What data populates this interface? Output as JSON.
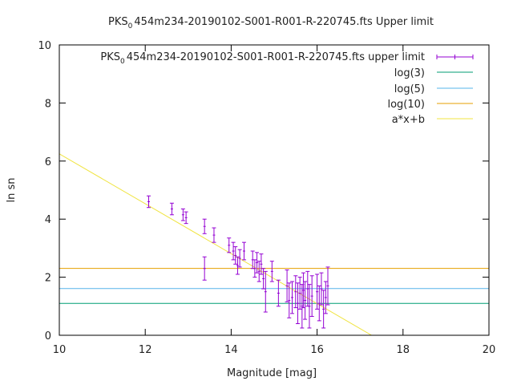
{
  "chart_data": {
    "type": "scatter",
    "title": {
      "prefix": "PKS",
      "subscript": "0",
      "suffix": "454m234-20190102-S001-R001-R-220745.fts Upper limit"
    },
    "xlabel": "Magnitude [mag]",
    "ylabel": "ln sn",
    "xlim": [
      10,
      20
    ],
    "ylim": [
      0,
      10
    ],
    "xticks": [
      10,
      12,
      14,
      16,
      18,
      20
    ],
    "yticks": [
      0,
      2,
      4,
      6,
      8,
      10
    ],
    "grid": false,
    "legend_position": "top-right",
    "legend": [
      {
        "prefix": "PKS",
        "subscript": "0",
        "suffix": "454m234-20190102-S001-R001-R-220745.fts upper limit",
        "kind": "errorbar",
        "color": "#9400d3"
      },
      {
        "label": "log(3)",
        "kind": "line",
        "color": "#009e73"
      },
      {
        "label": "log(5)",
        "kind": "line",
        "color": "#56b4e9"
      },
      {
        "label": "log(10)",
        "kind": "line",
        "color": "#e69f00"
      },
      {
        "label": "a*x+b",
        "kind": "line",
        "color": "#f0e442"
      }
    ],
    "hlines": [
      {
        "name": "log(3)",
        "y": 1.0986,
        "color": "#009e73"
      },
      {
        "name": "log(5)",
        "y": 1.6094,
        "color": "#56b4e9"
      },
      {
        "name": "log(10)",
        "y": 2.3026,
        "color": "#e69f00"
      }
    ],
    "fit_line": {
      "name": "a*x+b",
      "slope": -0.86,
      "intercept": 14.85,
      "color": "#f0e442"
    },
    "series": [
      {
        "name": "upper limit",
        "color": "#9400d3",
        "points": [
          {
            "x": 12.08,
            "y": 4.6,
            "err": 0.2
          },
          {
            "x": 12.62,
            "y": 4.35,
            "err": 0.2
          },
          {
            "x": 12.88,
            "y": 4.15,
            "err": 0.2
          },
          {
            "x": 12.95,
            "y": 4.05,
            "err": 0.2
          },
          {
            "x": 13.38,
            "y": 3.75,
            "err": 0.25
          },
          {
            "x": 13.38,
            "y": 2.3,
            "err": 0.4
          },
          {
            "x": 13.6,
            "y": 3.45,
            "err": 0.25
          },
          {
            "x": 13.95,
            "y": 3.1,
            "err": 0.25
          },
          {
            "x": 14.05,
            "y": 2.9,
            "err": 0.3
          },
          {
            "x": 14.1,
            "y": 2.75,
            "err": 0.3
          },
          {
            "x": 14.15,
            "y": 2.4,
            "err": 0.3
          },
          {
            "x": 14.2,
            "y": 2.65,
            "err": 0.3
          },
          {
            "x": 14.3,
            "y": 2.9,
            "err": 0.3
          },
          {
            "x": 14.5,
            "y": 2.6,
            "err": 0.3
          },
          {
            "x": 14.55,
            "y": 2.3,
            "err": 0.3
          },
          {
            "x": 14.6,
            "y": 2.5,
            "err": 0.35
          },
          {
            "x": 14.65,
            "y": 2.2,
            "err": 0.35
          },
          {
            "x": 14.7,
            "y": 2.45,
            "err": 0.35
          },
          {
            "x": 14.75,
            "y": 1.95,
            "err": 0.35
          },
          {
            "x": 14.8,
            "y": 1.5,
            "err": 0.7
          },
          {
            "x": 14.95,
            "y": 2.2,
            "err": 0.35
          },
          {
            "x": 15.1,
            "y": 1.45,
            "err": 0.45
          },
          {
            "x": 15.3,
            "y": 1.7,
            "err": 0.55
          },
          {
            "x": 15.35,
            "y": 1.2,
            "err": 0.6
          },
          {
            "x": 15.42,
            "y": 1.3,
            "err": 0.55
          },
          {
            "x": 15.5,
            "y": 1.5,
            "err": 0.55
          },
          {
            "x": 15.55,
            "y": 1.1,
            "err": 0.7
          },
          {
            "x": 15.6,
            "y": 1.45,
            "err": 0.55
          },
          {
            "x": 15.65,
            "y": 1.0,
            "err": 0.75
          },
          {
            "x": 15.68,
            "y": 1.55,
            "err": 0.6
          },
          {
            "x": 15.72,
            "y": 1.2,
            "err": 0.65
          },
          {
            "x": 15.78,
            "y": 1.6,
            "err": 0.6
          },
          {
            "x": 15.82,
            "y": 1.0,
            "err": 0.75
          },
          {
            "x": 15.88,
            "y": 1.35,
            "err": 0.7
          },
          {
            "x": 16.0,
            "y": 1.5,
            "err": 0.6
          },
          {
            "x": 16.05,
            "y": 1.1,
            "err": 0.6
          },
          {
            "x": 16.1,
            "y": 1.6,
            "err": 0.55
          },
          {
            "x": 16.15,
            "y": 0.9,
            "err": 0.65
          },
          {
            "x": 16.2,
            "y": 1.3,
            "err": 0.55
          },
          {
            "x": 16.25,
            "y": 1.7,
            "err": 0.65
          }
        ]
      }
    ]
  }
}
